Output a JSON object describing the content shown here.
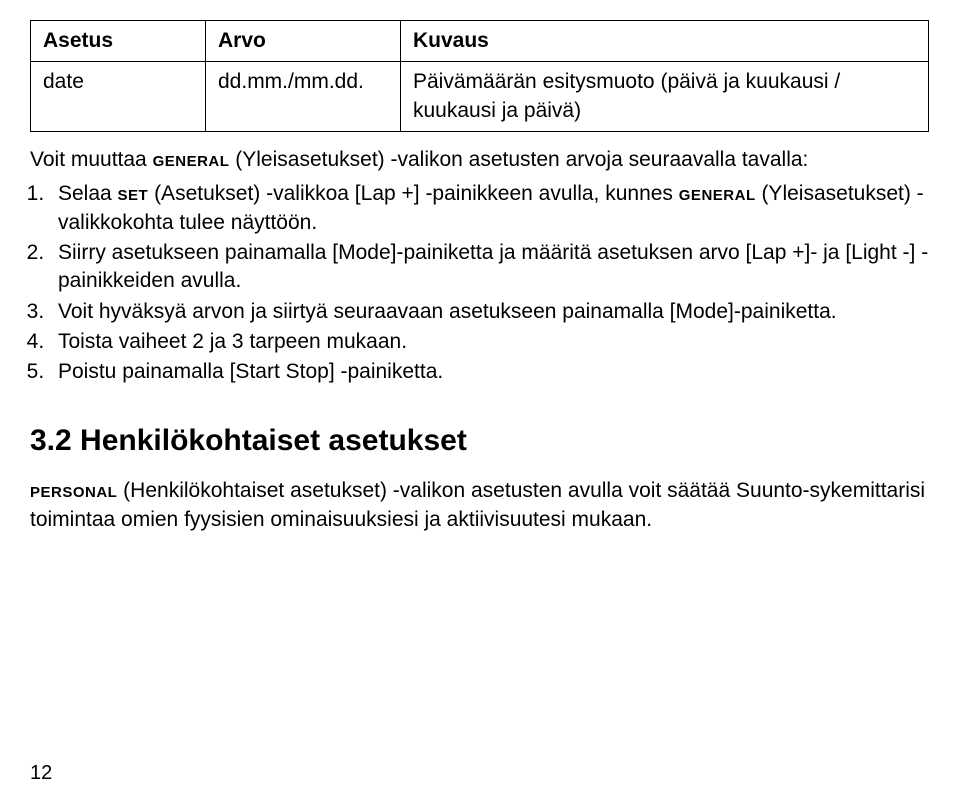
{
  "table": {
    "headers": [
      "Asetus",
      "Arvo",
      "Kuvaus"
    ],
    "row": {
      "setting": "date",
      "value": "dd.mm./mm.dd.",
      "description": "Päivämäärän esitysmuoto (päivä ja kuukausi / kuukausi ja päivä)"
    }
  },
  "intro_pre": "Voit muuttaa ",
  "intro_sc": "general",
  "intro_post": " (Yleisasetukset) -valikon asetusten arvoja seuraavalla tavalla:",
  "steps": {
    "s1_a": "Selaa ",
    "s1_sc1": "set",
    "s1_b": " (Asetukset) -valikkoa [Lap +] -painikkeen avulla, kunnes ",
    "s1_sc2": "general",
    "s1_c": " (Yleisasetukset) -valikkokohta tulee näyttöön.",
    "s2": "Siirry asetukseen painamalla [Mode]-painiketta ja määritä asetuksen arvo [Lap +]- ja [Light -] -painikkeiden avulla.",
    "s3": "Voit hyväksyä arvon ja siirtyä seuraavaan asetukseen painamalla [Mode]-painiketta.",
    "s4": "Toista vaiheet 2 ja 3 tarpeen mukaan.",
    "s5": "Poistu painamalla [Start Stop] -painiketta."
  },
  "heading": "3.2  Henkilökohtaiset asetukset",
  "body_sc": "personal",
  "body_text": " (Henkilökohtaiset asetukset) -valikon asetusten avulla voit säätää Suunto-sykemittarisi toimintaa omien fyysisien ominaisuuksiesi ja aktiivisuutesi mukaan.",
  "page_number": "12"
}
